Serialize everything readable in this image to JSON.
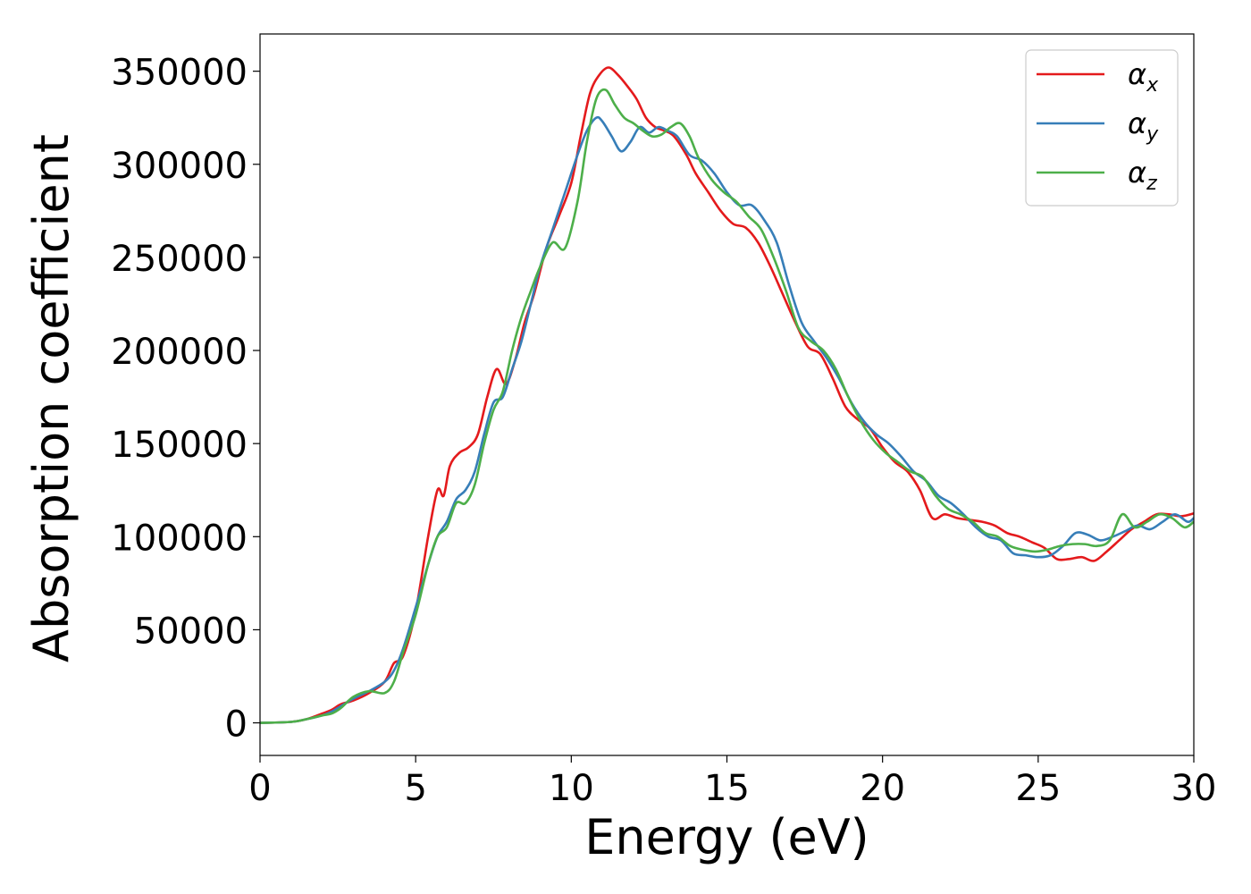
{
  "chart_data": {
    "type": "line",
    "title": "",
    "xlabel": "Energy (eV)",
    "ylabel": "Absorption coefficient",
    "xlim": [
      0,
      30
    ],
    "ylim": [
      -17500,
      370000
    ],
    "xticks": [
      0,
      5,
      10,
      15,
      20,
      25,
      30
    ],
    "yticks": [
      0,
      50000,
      100000,
      150000,
      200000,
      250000,
      300000,
      350000
    ],
    "grid": false,
    "legend_position": "top-right",
    "series": [
      {
        "name": "α_x",
        "legend_base": "α",
        "legend_sub": "x",
        "color": "#e41a1c",
        "x": [
          0,
          1,
          1.5,
          2,
          2.3,
          2.6,
          3,
          3.5,
          4,
          4.3,
          4.6,
          5,
          5.4,
          5.7,
          5.9,
          6.1,
          6.4,
          6.7,
          7.0,
          7.3,
          7.6,
          7.9,
          8.2,
          8.5,
          8.8,
          9.2,
          9.6,
          10.0,
          10.3,
          10.6,
          10.9,
          11.2,
          11.5,
          11.8,
          12.1,
          12.4,
          12.7,
          13.0,
          13.3,
          13.7,
          14.0,
          14.4,
          14.8,
          15.2,
          15.6,
          16.0,
          16.4,
          16.8,
          17.2,
          17.6,
          18.0,
          18.4,
          18.8,
          19.2,
          19.6,
          20.0,
          20.4,
          20.8,
          21.2,
          21.6,
          22.0,
          22.4,
          22.8,
          23.2,
          23.6,
          24.0,
          24.4,
          24.8,
          25.2,
          25.6,
          26.0,
          26.4,
          26.8,
          27.2,
          27.6,
          28.0,
          28.4,
          28.8,
          29.2,
          29.6,
          30.0
        ],
        "y": [
          0,
          500,
          2000,
          5000,
          7000,
          10000,
          12000,
          16000,
          22000,
          32000,
          36000,
          60000,
          100000,
          125000,
          122000,
          138000,
          145000,
          148000,
          155000,
          175000,
          190000,
          182000,
          195000,
          215000,
          230000,
          255000,
          272000,
          290000,
          315000,
          338000,
          348000,
          352000,
          348000,
          342000,
          335000,
          325000,
          320000,
          318000,
          315000,
          305000,
          295000,
          285000,
          275000,
          268000,
          266000,
          258000,
          245000,
          230000,
          215000,
          202000,
          198000,
          185000,
          170000,
          163000,
          158000,
          148000,
          140000,
          135000,
          125000,
          110000,
          112000,
          110000,
          109000,
          108000,
          106000,
          102000,
          100000,
          97000,
          94000,
          88000,
          88000,
          89000,
          87000,
          92000,
          98000,
          104000,
          108000,
          112000,
          112000,
          111000,
          112500
        ]
      },
      {
        "name": "α_y",
        "legend_base": "α",
        "legend_sub": "y",
        "color": "#377eb8",
        "x": [
          0,
          1,
          1.5,
          2,
          2.3,
          2.6,
          3,
          3.5,
          4,
          4.3,
          4.6,
          5,
          5.4,
          5.7,
          6.0,
          6.3,
          6.6,
          6.9,
          7.2,
          7.5,
          7.8,
          8.1,
          8.4,
          8.7,
          9.0,
          9.4,
          9.8,
          10.2,
          10.5,
          10.8,
          11.0,
          11.3,
          11.6,
          11.9,
          12.2,
          12.5,
          12.8,
          13.1,
          13.4,
          13.8,
          14.2,
          14.6,
          15.0,
          15.4,
          15.8,
          16.2,
          16.6,
          17.0,
          17.4,
          17.8,
          18.2,
          18.6,
          19.0,
          19.4,
          19.8,
          20.2,
          20.6,
          21.0,
          21.4,
          21.8,
          22.2,
          22.6,
          23.0,
          23.4,
          23.8,
          24.2,
          24.6,
          25.0,
          25.4,
          25.8,
          26.2,
          26.6,
          27.0,
          27.4,
          27.8,
          28.2,
          28.6,
          29.0,
          29.4,
          29.8,
          30.0
        ],
        "y": [
          0,
          500,
          2000,
          4000,
          6000,
          9000,
          13000,
          17000,
          22000,
          28000,
          40000,
          62000,
          85000,
          100000,
          108000,
          120000,
          125000,
          135000,
          155000,
          172000,
          175000,
          190000,
          205000,
          225000,
          245000,
          265000,
          285000,
          305000,
          318000,
          325000,
          323000,
          315000,
          307000,
          312000,
          320000,
          317000,
          320000,
          318000,
          315000,
          305000,
          302000,
          295000,
          285000,
          278000,
          278000,
          270000,
          258000,
          235000,
          215000,
          205000,
          196000,
          185000,
          172000,
          162000,
          155000,
          150000,
          143000,
          135000,
          130000,
          122000,
          118000,
          112000,
          105000,
          100000,
          98000,
          91000,
          90000,
          89000,
          90000,
          95000,
          102000,
          101000,
          98000,
          100000,
          103000,
          106000,
          104000,
          108000,
          112000,
          108000,
          110000
        ]
      },
      {
        "name": "α_z",
        "legend_base": "α",
        "legend_sub": "z",
        "color": "#4daf4a",
        "x": [
          0,
          1,
          1.5,
          2,
          2.3,
          2.6,
          3,
          3.5,
          4,
          4.3,
          4.6,
          5,
          5.4,
          5.7,
          6.0,
          6.3,
          6.6,
          6.9,
          7.2,
          7.5,
          7.8,
          8.1,
          8.4,
          8.7,
          9.0,
          9.4,
          9.8,
          10.2,
          10.5,
          10.8,
          11.1,
          11.4,
          11.7,
          12.0,
          12.3,
          12.6,
          12.9,
          13.2,
          13.5,
          13.8,
          14.1,
          14.5,
          14.9,
          15.3,
          15.7,
          16.1,
          16.5,
          16.9,
          17.3,
          17.7,
          18.1,
          18.5,
          18.9,
          19.3,
          19.7,
          20.1,
          20.5,
          20.9,
          21.3,
          21.7,
          22.1,
          22.5,
          22.9,
          23.3,
          23.7,
          24.1,
          24.5,
          24.9,
          25.3,
          25.7,
          26.1,
          26.5,
          26.9,
          27.3,
          27.7,
          28.1,
          28.5,
          28.9,
          29.3,
          29.7,
          30.0
        ],
        "y": [
          0,
          500,
          2000,
          4000,
          5000,
          8000,
          14000,
          17000,
          16000,
          22000,
          38000,
          58000,
          85000,
          100000,
          105000,
          118000,
          118000,
          128000,
          150000,
          168000,
          178000,
          200000,
          218000,
          232000,
          245000,
          258000,
          255000,
          280000,
          312000,
          335000,
          340000,
          332000,
          325000,
          322000,
          318000,
          315000,
          316000,
          320000,
          322000,
          315000,
          303000,
          292000,
          285000,
          280000,
          272000,
          265000,
          250000,
          232000,
          212000,
          205000,
          200000,
          190000,
          175000,
          162000,
          152000,
          145000,
          140000,
          135000,
          132000,
          122000,
          115000,
          112000,
          108000,
          102000,
          100000,
          95000,
          93000,
          92000,
          93000,
          95000,
          96000,
          96000,
          95000,
          98000,
          112000,
          105000,
          108000,
          112000,
          110000,
          105000,
          108000
        ]
      }
    ]
  }
}
